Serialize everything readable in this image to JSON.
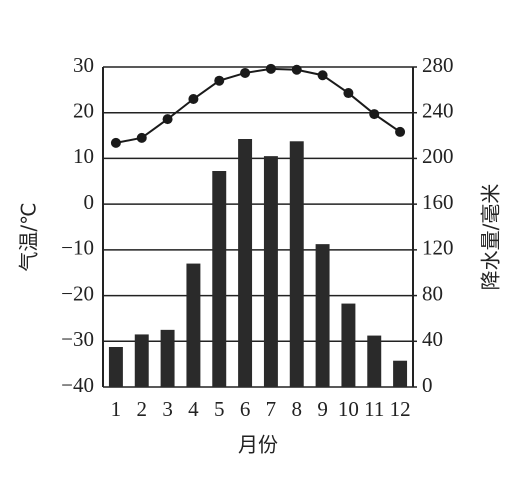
{
  "chart_data": {
    "type": "climate",
    "categories": [
      "1",
      "2",
      "3",
      "4",
      "5",
      "6",
      "7",
      "8",
      "9",
      "10",
      "11",
      "12"
    ],
    "x_label": "月份",
    "y_label": "气温/℃",
    "y2_label": "降水量/毫米",
    "ylim": [
      -40,
      30
    ],
    "yticks": [
      {
        "value": -40,
        "label": "−40"
      },
      {
        "value": -30,
        "label": "−30"
      },
      {
        "value": -20,
        "label": "−20"
      },
      {
        "value": -10,
        "label": "−10"
      },
      0,
      10,
      20,
      30
    ],
    "y2lim": [
      0,
      280
    ],
    "y2ticks": [
      0,
      40,
      80,
      120,
      160,
      200,
      240,
      280
    ],
    "grid": true,
    "series": [
      {
        "type": "line",
        "color": "#1a1a1a",
        "values": [
          13.4,
          14.5,
          18.6,
          23,
          27,
          28.7,
          29.6,
          29.4,
          28.2,
          24.3,
          19.7,
          15.8
        ]
      },
      {
        "type": "bar",
        "axis": "y2",
        "color": "#2a2a2a",
        "values": [
          35,
          46,
          50,
          108,
          189,
          217,
          202,
          215,
          125,
          73,
          45,
          23
        ]
      }
    ]
  }
}
